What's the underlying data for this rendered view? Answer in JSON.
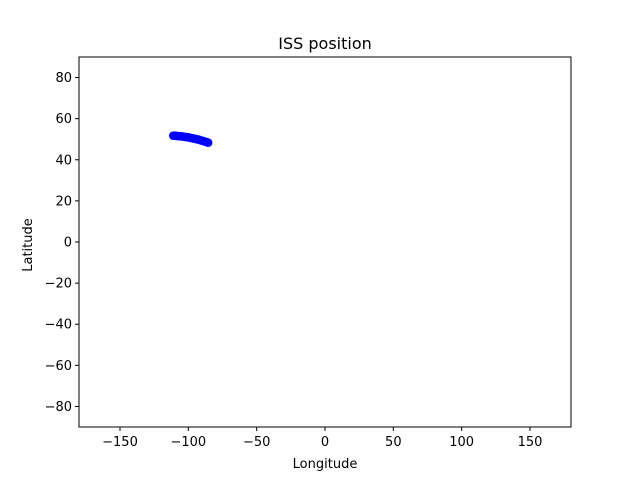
{
  "chart_data": {
    "type": "scatter",
    "title": "ISS position",
    "xlabel": "Longitude",
    "ylabel": "Latitude",
    "xlim": [
      -180,
      180
    ],
    "ylim": [
      -90,
      90
    ],
    "xticks": [
      -150,
      -100,
      -50,
      0,
      50,
      100,
      150
    ],
    "xtick_labels": [
      "−150",
      "−100",
      "−50",
      "0",
      "50",
      "100",
      "150"
    ],
    "yticks": [
      80,
      60,
      40,
      20,
      0,
      -20,
      -40,
      -60,
      -80
    ],
    "ytick_labels": [
      "80",
      "60",
      "40",
      "20",
      "0",
      "−20",
      "−40",
      "−60",
      "−80"
    ],
    "grid": false,
    "legend": false,
    "series": [
      {
        "color": "#0000ff",
        "marker": "circle",
        "x": [
          -111,
          -110,
          -109,
          -108,
          -107,
          -106,
          -105,
          -104,
          -103,
          -102,
          -101,
          -100,
          -99,
          -98,
          -97,
          -96,
          -95,
          -94,
          -93,
          -92,
          -91,
          -90,
          -89,
          -88,
          -87,
          -86,
          -85.5
        ],
        "y": [
          51.7,
          51.7,
          51.6,
          51.6,
          51.5,
          51.5,
          51.4,
          51.3,
          51.2,
          51.1,
          51.0,
          50.9,
          50.8,
          50.6,
          50.5,
          50.3,
          50.2,
          50.0,
          49.9,
          49.7,
          49.5,
          49.3,
          49.1,
          48.9,
          48.7,
          48.5,
          48.3
        ]
      }
    ]
  }
}
